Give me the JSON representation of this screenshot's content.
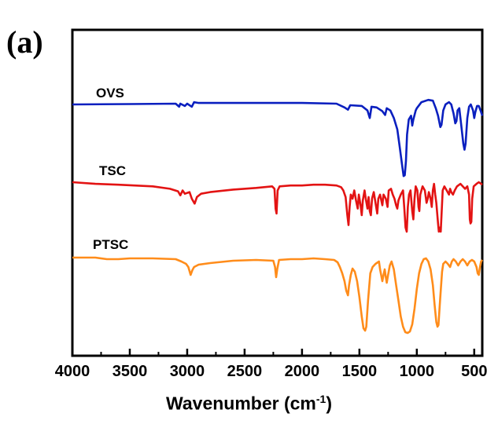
{
  "panel_label": "(a)",
  "chart_data": {
    "type": "line",
    "title": "",
    "xlabel": "Wavenumber (cm",
    "xlabel_sup": "-1",
    "ylabel": "",
    "xlim": [
      4000,
      430
    ],
    "x_reversed": true,
    "grid": false,
    "y_ticks_shown": false,
    "x_ticks": [
      4000,
      3500,
      3000,
      2500,
      2000,
      1500,
      1000,
      500
    ],
    "x_tick_labels": [
      "4000",
      "3500",
      "3000",
      "2500",
      "2000",
      "1500",
      "1000",
      "500"
    ],
    "series": [
      {
        "name": "OVS",
        "color": "#0a1fbf",
        "baseline": 0,
        "points": [
          [
            4000,
            0
          ],
          [
            3500,
            -0.5
          ],
          [
            3100,
            -1
          ],
          [
            3070,
            3
          ],
          [
            3060,
            -1
          ],
          [
            3020,
            2
          ],
          [
            3000,
            -1
          ],
          [
            2960,
            3
          ],
          [
            2940,
            -3
          ],
          [
            2900,
            -2
          ],
          [
            2500,
            -2
          ],
          [
            2000,
            -2
          ],
          [
            1700,
            -1
          ],
          [
            1630,
            4
          ],
          [
            1600,
            7
          ],
          [
            1580,
            1
          ],
          [
            1480,
            2
          ],
          [
            1430,
            8
          ],
          [
            1410,
            18
          ],
          [
            1395,
            3
          ],
          [
            1350,
            4
          ],
          [
            1300,
            9
          ],
          [
            1276,
            14
          ],
          [
            1262,
            5
          ],
          [
            1230,
            8
          ],
          [
            1200,
            18
          ],
          [
            1170,
            33
          ],
          [
            1150,
            55
          ],
          [
            1130,
            78
          ],
          [
            1115,
            95
          ],
          [
            1105,
            94
          ],
          [
            1095,
            75
          ],
          [
            1085,
            40
          ],
          [
            1070,
            20
          ],
          [
            1050,
            15
          ],
          [
            1040,
            28
          ],
          [
            1030,
            20
          ],
          [
            1010,
            8
          ],
          [
            1000,
            5
          ],
          [
            960,
            -3
          ],
          [
            900,
            -6
          ],
          [
            860,
            -5
          ],
          [
            835,
            5
          ],
          [
            815,
            15
          ],
          [
            795,
            30
          ],
          [
            785,
            27
          ],
          [
            770,
            8
          ],
          [
            750,
            0
          ],
          [
            720,
            -3
          ],
          [
            700,
            0
          ],
          [
            680,
            12
          ],
          [
            665,
            25
          ],
          [
            655,
            22
          ],
          [
            645,
            8
          ],
          [
            630,
            5
          ],
          [
            615,
            25
          ],
          [
            595,
            52
          ],
          [
            585,
            60
          ],
          [
            575,
            52
          ],
          [
            560,
            18
          ],
          [
            545,
            3
          ],
          [
            530,
            0
          ],
          [
            510,
            8
          ],
          [
            500,
            18
          ],
          [
            490,
            10
          ],
          [
            475,
            2
          ],
          [
            460,
            2
          ],
          [
            440,
            10
          ],
          [
            430,
            15
          ]
        ]
      },
      {
        "name": "TSC",
        "color": "#e31313",
        "baseline": 0,
        "points": [
          [
            4000,
            0
          ],
          [
            3800,
            2
          ],
          [
            3600,
            3
          ],
          [
            3300,
            5
          ],
          [
            3150,
            8
          ],
          [
            3080,
            11
          ],
          [
            3060,
            16
          ],
          [
            3040,
            10
          ],
          [
            3020,
            14
          ],
          [
            2980,
            12
          ],
          [
            2960,
            20
          ],
          [
            2935,
            26
          ],
          [
            2915,
            18
          ],
          [
            2880,
            14
          ],
          [
            2800,
            12
          ],
          [
            2600,
            9
          ],
          [
            2400,
            7
          ],
          [
            2260,
            5
          ],
          [
            2240,
            8
          ],
          [
            2230,
            32
          ],
          [
            2222,
            38
          ],
          [
            2212,
            10
          ],
          [
            2195,
            5
          ],
          [
            2100,
            4
          ],
          [
            2000,
            4
          ],
          [
            1900,
            3
          ],
          [
            1800,
            3
          ],
          [
            1700,
            4
          ],
          [
            1660,
            6
          ],
          [
            1640,
            10
          ],
          [
            1620,
            18
          ],
          [
            1605,
            40
          ],
          [
            1595,
            52
          ],
          [
            1585,
            30
          ],
          [
            1575,
            15
          ],
          [
            1560,
            20
          ],
          [
            1545,
            10
          ],
          [
            1530,
            22
          ],
          [
            1515,
            32
          ],
          [
            1505,
            15
          ],
          [
            1490,
            28
          ],
          [
            1480,
            40
          ],
          [
            1470,
            22
          ],
          [
            1455,
            10
          ],
          [
            1445,
            20
          ],
          [
            1430,
            32
          ],
          [
            1420,
            18
          ],
          [
            1410,
            35
          ],
          [
            1400,
            40
          ],
          [
            1390,
            20
          ],
          [
            1375,
            12
          ],
          [
            1360,
            25
          ],
          [
            1345,
            38
          ],
          [
            1335,
            20
          ],
          [
            1320,
            15
          ],
          [
            1300,
            28
          ],
          [
            1290,
            15
          ],
          [
            1270,
            20
          ],
          [
            1255,
            30
          ],
          [
            1245,
            10
          ],
          [
            1225,
            8
          ],
          [
            1210,
            15
          ],
          [
            1195,
            20
          ],
          [
            1180,
            28
          ],
          [
            1170,
            32
          ],
          [
            1160,
            22
          ],
          [
            1140,
            15
          ],
          [
            1120,
            10
          ],
          [
            1110,
            30
          ],
          [
            1098,
            55
          ],
          [
            1088,
            60
          ],
          [
            1078,
            30
          ],
          [
            1068,
            15
          ],
          [
            1055,
            10
          ],
          [
            1040,
            35
          ],
          [
            1030,
            45
          ],
          [
            1020,
            20
          ],
          [
            1010,
            5
          ],
          [
            995,
            10
          ],
          [
            985,
            30
          ],
          [
            978,
            35
          ],
          [
            970,
            15
          ],
          [
            950,
            5
          ],
          [
            930,
            10
          ],
          [
            915,
            25
          ],
          [
            905,
            20
          ],
          [
            895,
            12
          ],
          [
            880,
            20
          ],
          [
            870,
            30
          ],
          [
            860,
            10
          ],
          [
            850,
            2
          ],
          [
            840,
            15
          ],
          [
            830,
            25
          ],
          [
            815,
            50
          ],
          [
            808,
            60
          ],
          [
            800,
            55
          ],
          [
            792,
            60
          ],
          [
            785,
            40
          ],
          [
            775,
            10
          ],
          [
            760,
            5
          ],
          [
            740,
            10
          ],
          [
            720,
            15
          ],
          [
            710,
            8
          ],
          [
            700,
            12
          ],
          [
            685,
            15
          ],
          [
            670,
            10
          ],
          [
            650,
            5
          ],
          [
            620,
            2
          ],
          [
            600,
            5
          ],
          [
            580,
            8
          ],
          [
            560,
            5
          ],
          [
            545,
            15
          ],
          [
            538,
            45
          ],
          [
            532,
            50
          ],
          [
            525,
            48
          ],
          [
            518,
            20
          ],
          [
            505,
            5
          ],
          [
            480,
            2
          ],
          [
            460,
            0
          ],
          [
            440,
            2
          ],
          [
            430,
            3
          ]
        ]
      },
      {
        "name": "PTSC",
        "color": "#ff8c1a",
        "baseline": 0,
        "points": [
          [
            4000,
            0
          ],
          [
            3800,
            0
          ],
          [
            3700,
            2
          ],
          [
            3600,
            2
          ],
          [
            3500,
            1
          ],
          [
            3300,
            1
          ],
          [
            3100,
            2
          ],
          [
            3050,
            5
          ],
          [
            3010,
            8
          ],
          [
            2990,
            12
          ],
          [
            2970,
            22
          ],
          [
            2955,
            16
          ],
          [
            2940,
            12
          ],
          [
            2900,
            9
          ],
          [
            2800,
            7
          ],
          [
            2600,
            4
          ],
          [
            2400,
            3
          ],
          [
            2250,
            4
          ],
          [
            2235,
            12
          ],
          [
            2225,
            25
          ],
          [
            2215,
            14
          ],
          [
            2200,
            3
          ],
          [
            2100,
            2
          ],
          [
            2000,
            2
          ],
          [
            1900,
            1
          ],
          [
            1800,
            2
          ],
          [
            1720,
            3
          ],
          [
            1690,
            6
          ],
          [
            1670,
            12
          ],
          [
            1650,
            20
          ],
          [
            1630,
            30
          ],
          [
            1615,
            42
          ],
          [
            1600,
            48
          ],
          [
            1590,
            35
          ],
          [
            1575,
            22
          ],
          [
            1560,
            14
          ],
          [
            1540,
            18
          ],
          [
            1520,
            30
          ],
          [
            1500,
            50
          ],
          [
            1480,
            75
          ],
          [
            1465,
            90
          ],
          [
            1450,
            93
          ],
          [
            1440,
            88
          ],
          [
            1425,
            55
          ],
          [
            1405,
            20
          ],
          [
            1385,
            12
          ],
          [
            1360,
            8
          ],
          [
            1330,
            5
          ],
          [
            1320,
            15
          ],
          [
            1300,
            30
          ],
          [
            1290,
            22
          ],
          [
            1280,
            15
          ],
          [
            1270,
            25
          ],
          [
            1262,
            32
          ],
          [
            1250,
            22
          ],
          [
            1235,
            10
          ],
          [
            1220,
            5
          ],
          [
            1200,
            15
          ],
          [
            1180,
            35
          ],
          [
            1160,
            55
          ],
          [
            1140,
            75
          ],
          [
            1120,
            88
          ],
          [
            1100,
            95
          ],
          [
            1080,
            96
          ],
          [
            1060,
            94
          ],
          [
            1040,
            85
          ],
          [
            1020,
            65
          ],
          [
            1000,
            40
          ],
          [
            980,
            20
          ],
          [
            960,
            8
          ],
          [
            940,
            2
          ],
          [
            920,
            1
          ],
          [
            900,
            5
          ],
          [
            880,
            15
          ],
          [
            860,
            35
          ],
          [
            845,
            60
          ],
          [
            830,
            82
          ],
          [
            820,
            88
          ],
          [
            812,
            86
          ],
          [
            800,
            60
          ],
          [
            790,
            38
          ],
          [
            780,
            18
          ],
          [
            770,
            8
          ],
          [
            750,
            5
          ],
          [
            730,
            8
          ],
          [
            710,
            12
          ],
          [
            695,
            5
          ],
          [
            680,
            2
          ],
          [
            660,
            5
          ],
          [
            640,
            10
          ],
          [
            620,
            5
          ],
          [
            600,
            2
          ],
          [
            580,
            5
          ],
          [
            560,
            10
          ],
          [
            540,
            5
          ],
          [
            520,
            3
          ],
          [
            500,
            5
          ],
          [
            480,
            12
          ],
          [
            470,
            20
          ],
          [
            460,
            22
          ],
          [
            450,
            12
          ],
          [
            440,
            5
          ],
          [
            430,
            3
          ]
        ]
      }
    ]
  }
}
